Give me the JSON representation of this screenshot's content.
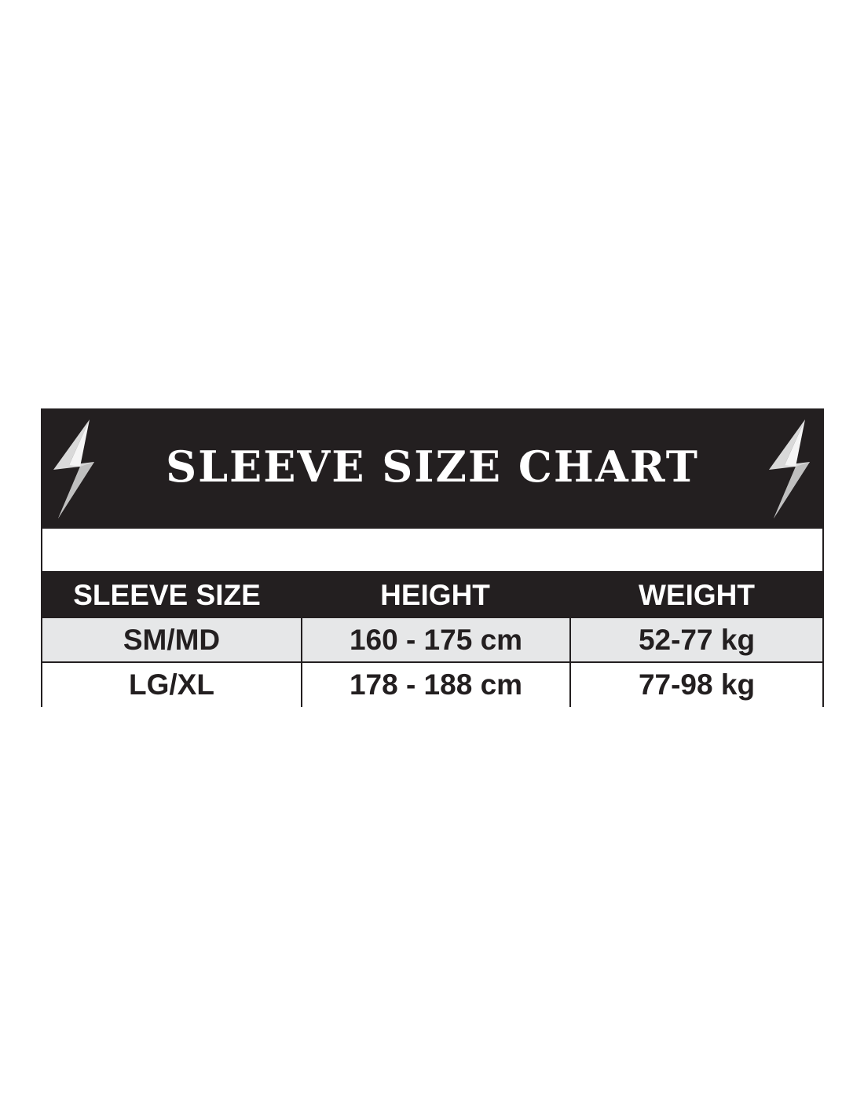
{
  "title": "SLEEVE SIZE CHART",
  "icons": {
    "left": "lightning-bolt-icon",
    "right": "lightning-bolt-icon"
  },
  "colors": {
    "header_bg": "#231f20",
    "row_alt_bg": "#e6e7e8",
    "text_light": "#ffffff"
  },
  "table": {
    "headers": [
      "SLEEVE SIZE",
      "HEIGHT",
      "WEIGHT"
    ],
    "rows": [
      [
        "SM/MD",
        "160 - 175 cm",
        "52-77 kg"
      ],
      [
        "LG/XL",
        "178 - 188 cm",
        "77-98 kg"
      ]
    ]
  }
}
